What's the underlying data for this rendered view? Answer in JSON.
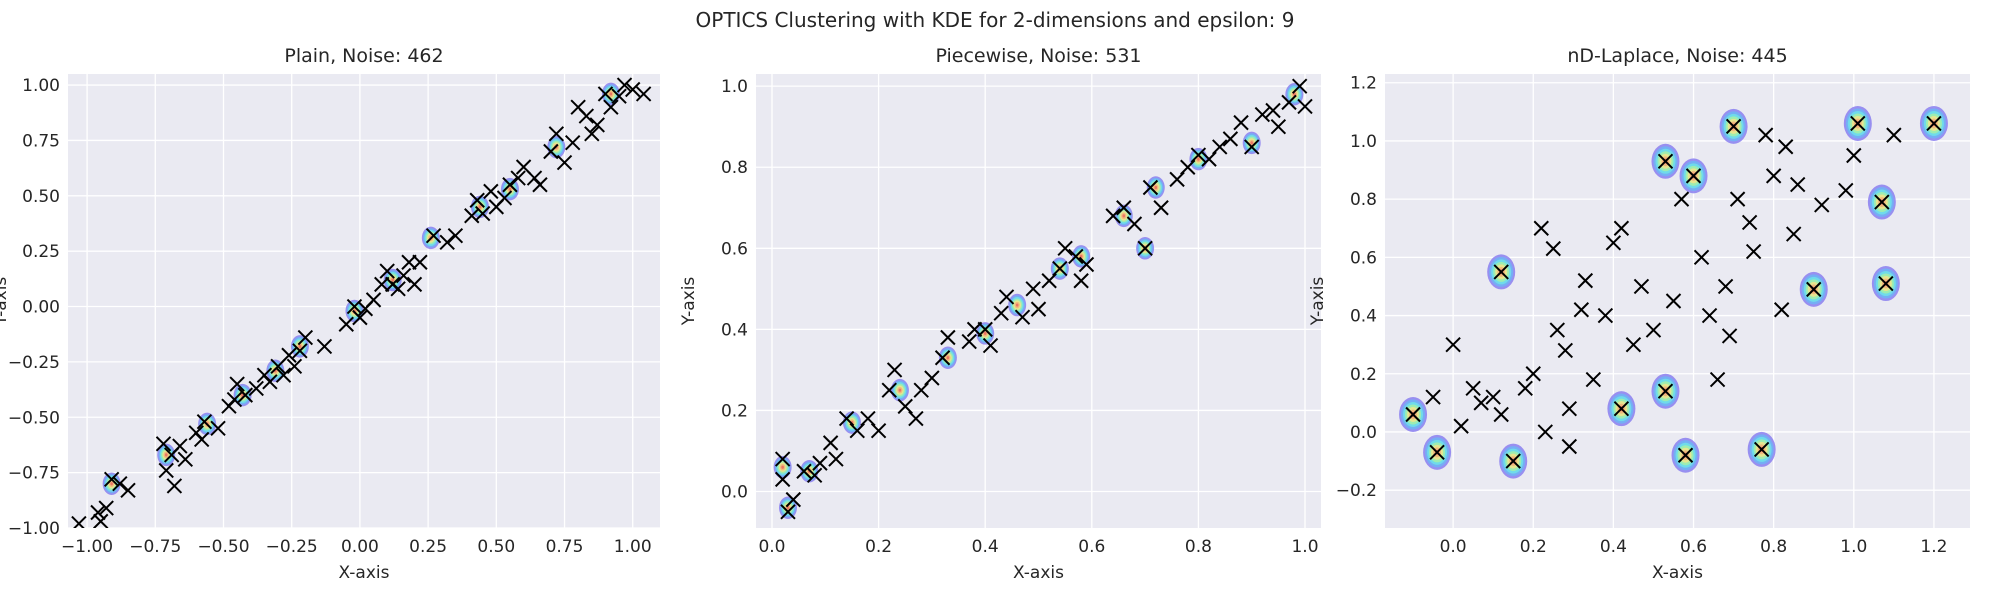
{
  "suptitle": "OPTICS Clustering with KDE for 2-dimensions and epsilon: 9",
  "colors": {
    "figure_bg": "#ffffff",
    "axes_bg": "#eaeaf2",
    "grid": "#ffffff",
    "text": "#262626",
    "marker": "#000000",
    "kde_palette": [
      "#8a7ff0",
      "#6fb4f5",
      "#6fe3e8",
      "#a6f0a8",
      "#f2e48a",
      "#f5b07a",
      "#ea6b60"
    ]
  },
  "chart_data": [
    {
      "type": "scatter",
      "title": "Plain, Noise: 462",
      "xlabel": "X-axis",
      "ylabel": "Y-axis",
      "xlim": [
        -1.07,
        1.1
      ],
      "ylim": [
        -1.0,
        1.05
      ],
      "xticks": [
        -1.0,
        -0.75,
        -0.5,
        -0.25,
        0.0,
        0.25,
        0.5,
        0.75,
        1.0
      ],
      "xtick_labels": [
        "−1.00",
        "−0.75",
        "−0.50",
        "−0.25",
        "0.00",
        "0.25",
        "0.50",
        "0.75",
        "1.00"
      ],
      "yticks": [
        -1.0,
        -0.75,
        -0.5,
        -0.25,
        0.0,
        0.25,
        0.5,
        0.75,
        1.0
      ],
      "ytick_labels": [
        "−1.00",
        "−0.75",
        "−0.50",
        "−0.25",
        "0.00",
        "0.25",
        "0.50",
        "0.75",
        "1.00"
      ],
      "grid": true,
      "marker": "x",
      "points": [
        [
          -1.03,
          -0.98
        ],
        [
          -0.96,
          -0.93
        ],
        [
          -0.95,
          -0.97
        ],
        [
          -0.93,
          -0.91
        ],
        [
          -0.91,
          -0.78
        ],
        [
          -0.88,
          -0.8
        ],
        [
          -0.85,
          -0.83
        ],
        [
          -0.72,
          -0.62
        ],
        [
          -0.71,
          -0.74
        ],
        [
          -0.69,
          -0.67
        ],
        [
          -0.68,
          -0.81
        ],
        [
          -0.66,
          -0.63
        ],
        [
          -0.64,
          -0.69
        ],
        [
          -0.6,
          -0.57
        ],
        [
          -0.58,
          -0.6
        ],
        [
          -0.57,
          -0.52
        ],
        [
          -0.52,
          -0.55
        ],
        [
          -0.48,
          -0.45
        ],
        [
          -0.46,
          -0.42
        ],
        [
          -0.45,
          -0.35
        ],
        [
          -0.42,
          -0.4
        ],
        [
          -0.38,
          -0.37
        ],
        [
          -0.35,
          -0.31
        ],
        [
          -0.33,
          -0.34
        ],
        [
          -0.3,
          -0.27
        ],
        [
          -0.28,
          -0.31
        ],
        [
          -0.26,
          -0.22
        ],
        [
          -0.24,
          -0.27
        ],
        [
          -0.22,
          -0.2
        ],
        [
          -0.2,
          -0.14
        ],
        [
          -0.13,
          -0.18
        ],
        [
          -0.05,
          -0.08
        ],
        [
          -0.02,
          0.0
        ],
        [
          0.0,
          -0.05
        ],
        [
          0.02,
          -0.01
        ],
        [
          0.05,
          0.03
        ],
        [
          0.08,
          0.1
        ],
        [
          0.1,
          0.16
        ],
        [
          0.12,
          0.1
        ],
        [
          0.14,
          0.08
        ],
        [
          0.16,
          0.14
        ],
        [
          0.18,
          0.2
        ],
        [
          0.2,
          0.1
        ],
        [
          0.22,
          0.2
        ],
        [
          0.27,
          0.32
        ],
        [
          0.32,
          0.29
        ],
        [
          0.35,
          0.32
        ],
        [
          0.41,
          0.41
        ],
        [
          0.43,
          0.48
        ],
        [
          0.45,
          0.42
        ],
        [
          0.48,
          0.52
        ],
        [
          0.5,
          0.45
        ],
        [
          0.53,
          0.49
        ],
        [
          0.55,
          0.55
        ],
        [
          0.58,
          0.58
        ],
        [
          0.6,
          0.63
        ],
        [
          0.64,
          0.58
        ],
        [
          0.66,
          0.55
        ],
        [
          0.7,
          0.7
        ],
        [
          0.72,
          0.78
        ],
        [
          0.75,
          0.65
        ],
        [
          0.78,
          0.74
        ],
        [
          0.8,
          0.9
        ],
        [
          0.83,
          0.86
        ],
        [
          0.85,
          0.78
        ],
        [
          0.87,
          0.82
        ],
        [
          0.9,
          0.96
        ],
        [
          0.92,
          0.9
        ],
        [
          0.95,
          0.95
        ],
        [
          0.97,
          1.0
        ],
        [
          1.0,
          0.98
        ],
        [
          1.04,
          0.96
        ]
      ],
      "kde_points": [
        [
          -0.91,
          -0.8
        ],
        [
          -0.71,
          -0.67
        ],
        [
          -0.56,
          -0.53
        ],
        [
          -0.43,
          -0.4
        ],
        [
          -0.31,
          -0.29
        ],
        [
          -0.22,
          -0.18
        ],
        [
          -0.02,
          -0.02
        ],
        [
          0.12,
          0.12
        ],
        [
          0.26,
          0.31
        ],
        [
          0.44,
          0.45
        ],
        [
          0.55,
          0.53
        ],
        [
          0.72,
          0.72
        ],
        [
          0.92,
          0.96
        ]
      ]
    },
    {
      "type": "scatter",
      "title": "Piecewise, Noise: 531",
      "xlabel": "X-axis",
      "ylabel": "Y-axis",
      "xlim": [
        -0.03,
        1.03
      ],
      "ylim": [
        -0.09,
        1.03
      ],
      "xticks": [
        0.0,
        0.2,
        0.4,
        0.6,
        0.8,
        1.0
      ],
      "xtick_labels": [
        "0.0",
        "0.2",
        "0.4",
        "0.6",
        "0.8",
        "1.0"
      ],
      "yticks": [
        0.0,
        0.2,
        0.4,
        0.6,
        0.8,
        1.0
      ],
      "ytick_labels": [
        "0.0",
        "0.2",
        "0.4",
        "0.6",
        "0.8",
        "1.0"
      ],
      "grid": true,
      "marker": "x",
      "points": [
        [
          0.02,
          0.03
        ],
        [
          0.02,
          0.08
        ],
        [
          0.03,
          -0.05
        ],
        [
          0.04,
          -0.02
        ],
        [
          0.06,
          0.05
        ],
        [
          0.08,
          0.04
        ],
        [
          0.09,
          0.07
        ],
        [
          0.11,
          0.12
        ],
        [
          0.12,
          0.08
        ],
        [
          0.14,
          0.18
        ],
        [
          0.16,
          0.15
        ],
        [
          0.18,
          0.18
        ],
        [
          0.2,
          0.15
        ],
        [
          0.22,
          0.25
        ],
        [
          0.23,
          0.3
        ],
        [
          0.25,
          0.21
        ],
        [
          0.27,
          0.18
        ],
        [
          0.28,
          0.25
        ],
        [
          0.3,
          0.28
        ],
        [
          0.32,
          0.33
        ],
        [
          0.33,
          0.38
        ],
        [
          0.37,
          0.37
        ],
        [
          0.38,
          0.4
        ],
        [
          0.4,
          0.4
        ],
        [
          0.41,
          0.36
        ],
        [
          0.43,
          0.44
        ],
        [
          0.44,
          0.48
        ],
        [
          0.47,
          0.43
        ],
        [
          0.49,
          0.5
        ],
        [
          0.5,
          0.45
        ],
        [
          0.52,
          0.52
        ],
        [
          0.54,
          0.55
        ],
        [
          0.55,
          0.6
        ],
        [
          0.57,
          0.58
        ],
        [
          0.58,
          0.52
        ],
        [
          0.59,
          0.56
        ],
        [
          0.64,
          0.68
        ],
        [
          0.66,
          0.7
        ],
        [
          0.68,
          0.66
        ],
        [
          0.7,
          0.6
        ],
        [
          0.71,
          0.75
        ],
        [
          0.73,
          0.7
        ],
        [
          0.76,
          0.77
        ],
        [
          0.78,
          0.8
        ],
        [
          0.8,
          0.83
        ],
        [
          0.82,
          0.82
        ],
        [
          0.84,
          0.85
        ],
        [
          0.86,
          0.87
        ],
        [
          0.88,
          0.91
        ],
        [
          0.9,
          0.85
        ],
        [
          0.92,
          0.93
        ],
        [
          0.94,
          0.94
        ],
        [
          0.95,
          0.9
        ],
        [
          0.97,
          0.96
        ],
        [
          0.99,
          1.0
        ],
        [
          1.0,
          0.95
        ]
      ],
      "kde_points": [
        [
          0.02,
          0.06
        ],
        [
          0.03,
          -0.04
        ],
        [
          0.07,
          0.05
        ],
        [
          0.15,
          0.17
        ],
        [
          0.24,
          0.25
        ],
        [
          0.33,
          0.33
        ],
        [
          0.4,
          0.39
        ],
        [
          0.46,
          0.46
        ],
        [
          0.54,
          0.55
        ],
        [
          0.58,
          0.58
        ],
        [
          0.66,
          0.68
        ],
        [
          0.7,
          0.6
        ],
        [
          0.72,
          0.75
        ],
        [
          0.8,
          0.82
        ],
        [
          0.9,
          0.86
        ],
        [
          0.98,
          0.98
        ]
      ]
    },
    {
      "type": "scatter",
      "title": "nD-Laplace, Noise: 445",
      "xlabel": "X-axis",
      "ylabel": "Y-axis",
      "xlim": [
        -0.17,
        1.29
      ],
      "ylim": [
        -0.33,
        1.23
      ],
      "xticks": [
        0.0,
        0.2,
        0.4,
        0.6,
        0.8,
        1.0,
        1.2
      ],
      "xtick_labels": [
        "0.0",
        "0.2",
        "0.4",
        "0.6",
        "0.8",
        "1.0",
        "1.2"
      ],
      "yticks": [
        -0.2,
        0.0,
        0.2,
        0.4,
        0.6,
        0.8,
        1.0,
        1.2
      ],
      "ytick_labels": [
        "−0.2",
        "0.0",
        "0.2",
        "0.4",
        "0.6",
        "0.8",
        "1.0",
        "1.2"
      ],
      "grid": true,
      "marker": "x",
      "points": [
        [
          -0.1,
          0.06
        ],
        [
          -0.05,
          0.12
        ],
        [
          -0.04,
          -0.07
        ],
        [
          0.0,
          0.3
        ],
        [
          0.02,
          0.02
        ],
        [
          0.05,
          0.15
        ],
        [
          0.07,
          0.1
        ],
        [
          0.1,
          0.12
        ],
        [
          0.12,
          0.06
        ],
        [
          0.12,
          0.55
        ],
        [
          0.15,
          -0.1
        ],
        [
          0.18,
          0.15
        ],
        [
          0.2,
          0.2
        ],
        [
          0.22,
          0.7
        ],
        [
          0.23,
          0.0
        ],
        [
          0.25,
          0.63
        ],
        [
          0.26,
          0.35
        ],
        [
          0.28,
          0.28
        ],
        [
          0.29,
          0.08
        ],
        [
          0.29,
          -0.05
        ],
        [
          0.32,
          0.42
        ],
        [
          0.33,
          0.52
        ],
        [
          0.35,
          0.18
        ],
        [
          0.38,
          0.4
        ],
        [
          0.4,
          0.65
        ],
        [
          0.42,
          0.08
        ],
        [
          0.42,
          0.7
        ],
        [
          0.45,
          0.3
        ],
        [
          0.47,
          0.5
        ],
        [
          0.5,
          0.35
        ],
        [
          0.53,
          0.14
        ],
        [
          0.53,
          0.93
        ],
        [
          0.55,
          0.45
        ],
        [
          0.57,
          0.8
        ],
        [
          0.58,
          -0.08
        ],
        [
          0.6,
          0.88
        ],
        [
          0.62,
          0.6
        ],
        [
          0.64,
          0.4
        ],
        [
          0.66,
          0.18
        ],
        [
          0.68,
          0.5
        ],
        [
          0.69,
          0.33
        ],
        [
          0.7,
          1.05
        ],
        [
          0.71,
          0.8
        ],
        [
          0.74,
          0.72
        ],
        [
          0.75,
          0.62
        ],
        [
          0.77,
          -0.06
        ],
        [
          0.78,
          1.02
        ],
        [
          0.8,
          0.88
        ],
        [
          0.82,
          0.42
        ],
        [
          0.83,
          0.98
        ],
        [
          0.85,
          0.68
        ],
        [
          0.86,
          0.85
        ],
        [
          0.9,
          0.49
        ],
        [
          0.92,
          0.78
        ],
        [
          0.98,
          0.83
        ],
        [
          1.0,
          0.95
        ],
        [
          1.01,
          1.06
        ],
        [
          1.07,
          0.79
        ],
        [
          1.08,
          0.51
        ],
        [
          1.1,
          1.02
        ],
        [
          1.2,
          1.06
        ]
      ],
      "kde_points": [
        [
          -0.1,
          0.06
        ],
        [
          -0.04,
          -0.07
        ],
        [
          0.12,
          0.55
        ],
        [
          0.15,
          -0.1
        ],
        [
          0.42,
          0.08
        ],
        [
          0.53,
          0.14
        ],
        [
          0.58,
          -0.08
        ],
        [
          0.77,
          -0.06
        ],
        [
          0.9,
          0.49
        ],
        [
          1.08,
          0.51
        ],
        [
          1.07,
          0.79
        ],
        [
          1.01,
          1.06
        ],
        [
          1.2,
          1.06
        ],
        [
          0.7,
          1.05
        ],
        [
          0.53,
          0.93
        ],
        [
          0.6,
          0.88
        ]
      ]
    }
  ]
}
